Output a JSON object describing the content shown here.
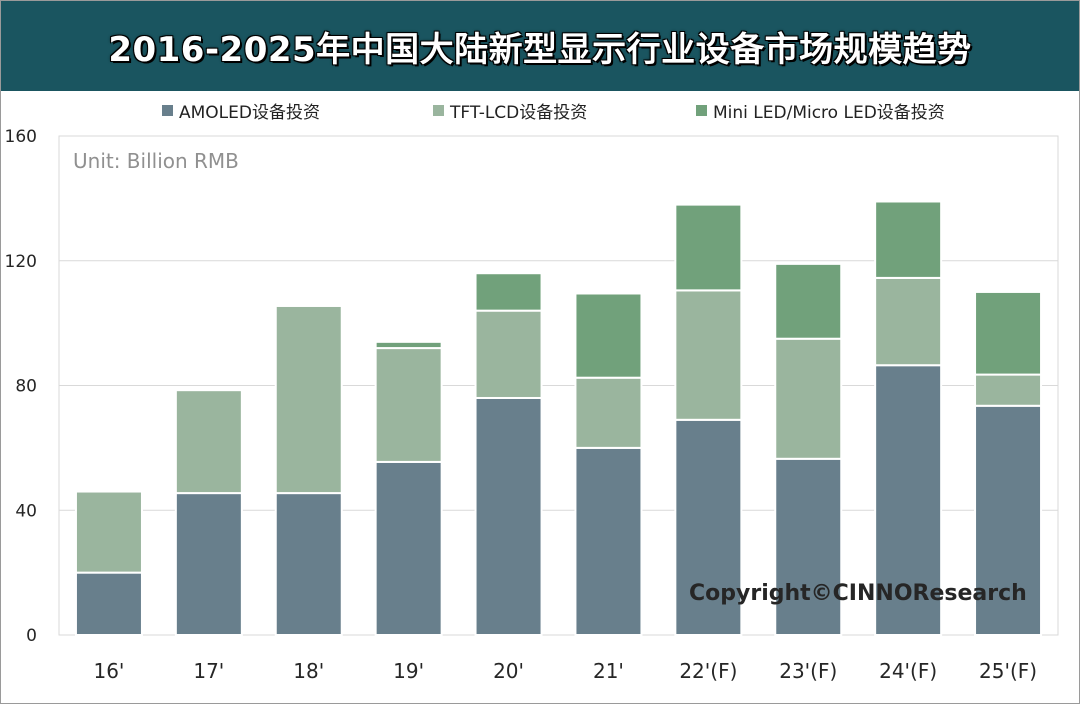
{
  "chart_data": {
    "type": "bar",
    "stacked": true,
    "title": "2016-2025年中国大陆新型显示行业设备市场规模趋势",
    "unit_label": "Unit: Billion RMB",
    "copyright": "Copyright©CINNOResearch",
    "categories": [
      "16'",
      "17'",
      "18'",
      "19'",
      "20'",
      "21'",
      "22'(F)",
      "23'(F)",
      "24'(F)",
      "25'(F)"
    ],
    "ylim": [
      0,
      160
    ],
    "yticks": [
      "0",
      "40",
      "80",
      "120",
      "160"
    ],
    "grid": true,
    "legend_position": "top",
    "series": [
      {
        "name": "AMOLED设备投资",
        "color": "#687f8c",
        "values": [
          20,
          45.5,
          45.5,
          55.5,
          76,
          60,
          69,
          56.5,
          86.5,
          73.5
        ]
      },
      {
        "name": "TFT-LCD设备投资",
        "color": "#9ab59e",
        "values": [
          26,
          33,
          60,
          36.5,
          28,
          22.5,
          41.5,
          38.5,
          28,
          10
        ]
      },
      {
        "name": "Mini LED/Micro LED设备投资",
        "color": "#71a17b",
        "values": [
          0,
          0,
          0,
          2,
          12,
          27,
          27.5,
          24,
          24.5,
          26.5
        ]
      }
    ]
  }
}
